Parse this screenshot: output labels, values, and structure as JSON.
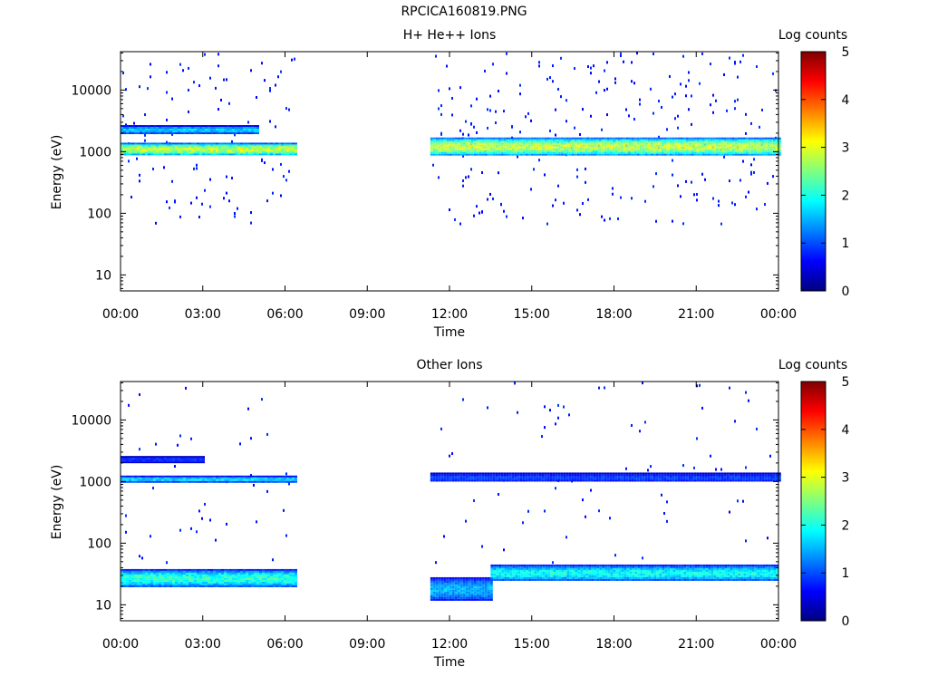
{
  "figure_title": "RPCICA160819.PNG",
  "colors": {
    "colormap": [
      "#00007f",
      "#0000ff",
      "#0080ff",
      "#00ffff",
      "#7fff7f",
      "#ffff00",
      "#ff8000",
      "#ff0000",
      "#7f0000"
    ],
    "axis": "#000000",
    "background": "#ffffff"
  },
  "chart_data": [
    {
      "type": "heatmap",
      "title": "H+ He++ Ions",
      "xlabel": "Time",
      "ylabel": "Energy (eV)",
      "x_ticks": [
        "00:00",
        "03:00",
        "06:00",
        "09:00",
        "12:00",
        "15:00",
        "18:00",
        "21:00",
        "00:00"
      ],
      "xlim_hours": [
        0,
        24
      ],
      "y_scale": "log",
      "y_ticks": [
        "10",
        "100",
        "1000",
        "10000"
      ],
      "ylim": [
        5.5,
        42000
      ],
      "colorbar": {
        "label": "Log counts",
        "ticks": [
          "0",
          "1",
          "2",
          "3",
          "4",
          "5"
        ],
        "range": [
          0,
          5
        ]
      },
      "data_gaps_hours": [
        [
          6.4,
          11.3
        ]
      ],
      "bands": [
        {
          "name": "main band",
          "start_hour": 0.0,
          "end_hour": 6.4,
          "energy_low_eV": 900,
          "energy_high_eV": 1400,
          "log_counts_peak": 3.0
        },
        {
          "name": "secondary band",
          "start_hour": 0.0,
          "end_hour": 5.0,
          "energy_low_eV": 2000,
          "energy_high_eV": 2700,
          "log_counts_peak": 1.7
        },
        {
          "name": "main band",
          "start_hour": 11.3,
          "end_hour": 24.0,
          "energy_low_eV": 900,
          "energy_high_eV": 1700,
          "log_counts_peak": 3.0
        }
      ],
      "scatter_density": 0.08,
      "scatter_ylim": [
        70,
        42000
      ],
      "scatter_level": 0.6
    },
    {
      "type": "heatmap",
      "title": "Other Ions",
      "xlabel": "Time",
      "ylabel": "Energy (eV)",
      "x_ticks": [
        "00:00",
        "03:00",
        "06:00",
        "09:00",
        "12:00",
        "15:00",
        "18:00",
        "21:00",
        "00:00"
      ],
      "xlim_hours": [
        0,
        24
      ],
      "y_scale": "log",
      "y_ticks": [
        "10",
        "100",
        "1000",
        "10000"
      ],
      "ylim": [
        5.5,
        42000
      ],
      "colorbar": {
        "label": "Log counts",
        "ticks": [
          "0",
          "1",
          "2",
          "3",
          "4",
          "5"
        ],
        "range": [
          0,
          5
        ]
      },
      "data_gaps_hours": [
        [
          6.4,
          11.3
        ]
      ],
      "bands": [
        {
          "name": "upper band",
          "start_hour": 0.0,
          "end_hour": 6.4,
          "energy_low_eV": 1000,
          "energy_high_eV": 1250,
          "log_counts_peak": 1.8
        },
        {
          "name": "faint band",
          "start_hour": 0.0,
          "end_hour": 3.0,
          "energy_low_eV": 2100,
          "energy_high_eV": 2600,
          "log_counts_peak": 0.9
        },
        {
          "name": "lower band",
          "start_hour": 0.0,
          "end_hour": 6.4,
          "energy_low_eV": 20,
          "energy_high_eV": 38,
          "log_counts_peak": 2.2
        },
        {
          "name": "upper band",
          "start_hour": 11.3,
          "end_hour": 24.0,
          "energy_low_eV": 1000,
          "energy_high_eV": 1400,
          "log_counts_peak": 1.0
        },
        {
          "name": "lower band",
          "start_hour": 11.3,
          "end_hour": 13.5,
          "energy_low_eV": 12,
          "energy_high_eV": 28,
          "log_counts_peak": 1.6
        },
        {
          "name": "lower band",
          "start_hour": 13.5,
          "end_hour": 24.0,
          "energy_low_eV": 25,
          "energy_high_eV": 45,
          "log_counts_peak": 2.0
        }
      ],
      "scatter_density": 0.02,
      "scatter_ylim": [
        50,
        42000
      ],
      "scatter_level": 0.6
    }
  ]
}
